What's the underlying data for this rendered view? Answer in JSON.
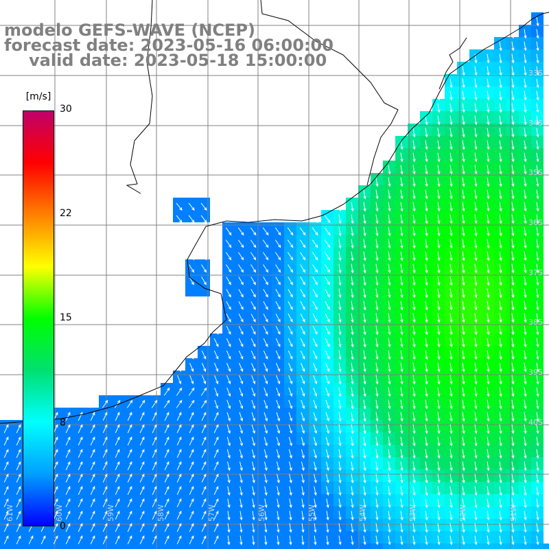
{
  "header": {
    "line1": "modelo GEFS-WAVE (NCEP)",
    "line2": "forecast date: 2023-05-16 06:00:00",
    "line3": "valid date: 2023-05-18 15:00:00"
  },
  "colorbar": {
    "unit": "[m/s]",
    "ticks": [
      "30",
      "22",
      "15",
      "8",
      "0"
    ],
    "tick_values": [
      30,
      22,
      15,
      8,
      0
    ],
    "colors": [
      "#0000ff",
      "#00a0ff",
      "#00ffff",
      "#00e070",
      "#00ff00",
      "#ffff00",
      "#ff8000",
      "#ff0000",
      "#c0006a"
    ]
  },
  "map": {
    "lon_labels": [
      "61W",
      "60W",
      "59W",
      "58W",
      "57W",
      "56W",
      "55W",
      "54W",
      "53W",
      "52W",
      "51W"
    ],
    "lat_labels": [
      "33S",
      "34S",
      "35S",
      "36S",
      "37S",
      "38S",
      "39S",
      "40S"
    ],
    "grid_color": "#808080",
    "coast_color": "#000000",
    "arrow_color": "#ffffff",
    "wind_direction": "from north-northwest over ocean, from south-southwest near southern coast"
  }
}
